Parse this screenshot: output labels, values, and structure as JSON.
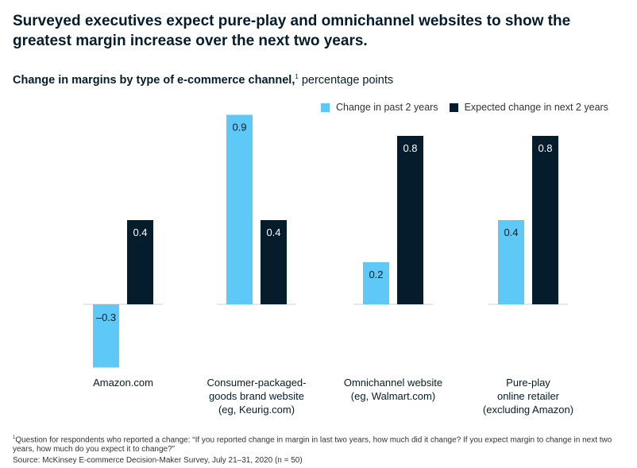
{
  "title": "Surveyed executives expect pure-play and omnichannel websites to show the greatest margin increase over the next two years.",
  "subtitle_bold": "Change in margins by type of e-commerce channel,",
  "subtitle_sup": "1",
  "subtitle_rest": " percentage points",
  "footnote_sup": "1",
  "footnote": "Question for respondents who reported a change: “If you reported change in margin in last two years, how much did it change? If you expect margin to change in next two years, how much do you expect it to change?”",
  "source": "Source: McKinsey E-commerce Decision-Maker Survey, July 21–31, 2020 (n = 50)",
  "chart_data": {
    "type": "bar",
    "categories": [
      [
        "Amazon.com"
      ],
      [
        "Consumer-packaged-",
        "goods brand website",
        "(eg, Keurig.com)"
      ],
      [
        "Omnichannel website",
        "(eg, Walmart.com)"
      ],
      [
        "Pure-play",
        "online retailer",
        "(excluding Amazon)"
      ]
    ],
    "series": [
      {
        "name": "Change in past 2 years",
        "values": [
          -0.3,
          0.9,
          0.2,
          0.4
        ],
        "labels": [
          "–0.3",
          "0.9",
          "0.2",
          "0.4"
        ],
        "color": "#5ec8f7"
      },
      {
        "name": "Expected change in next 2 years",
        "values": [
          0.4,
          0.4,
          0.8,
          0.8
        ],
        "labels": [
          "0.4",
          "0.4",
          "0.8",
          "0.8"
        ],
        "color": "#051c2c"
      }
    ],
    "ylim": [
      -0.3,
      0.9
    ],
    "legend": "top-right",
    "grid": false
  }
}
